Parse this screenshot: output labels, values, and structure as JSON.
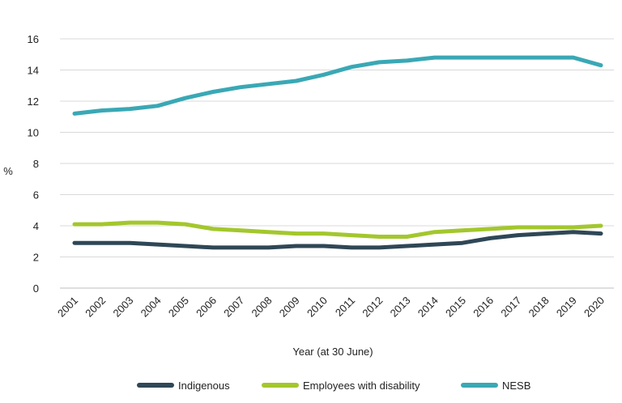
{
  "chart_data": {
    "type": "line",
    "title": "",
    "xlabel": "Year (at 30 June)",
    "ylabel": "%",
    "ylim": [
      0,
      16
    ],
    "yticks": [
      0,
      2,
      4,
      6,
      8,
      10,
      12,
      14,
      16
    ],
    "grid": true,
    "legend_position": "bottom",
    "x": [
      "2001",
      "2002",
      "2003",
      "2004",
      "2005",
      "2006",
      "2007",
      "2008",
      "2009",
      "2010",
      "2011",
      "2012",
      "2013",
      "2014",
      "2015",
      "2016",
      "2017",
      "2018",
      "2019",
      "2020"
    ],
    "series": [
      {
        "name": "Indigenous",
        "color": "#2f4756",
        "values": [
          2.9,
          2.9,
          2.9,
          2.8,
          2.7,
          2.6,
          2.6,
          2.6,
          2.7,
          2.7,
          2.6,
          2.6,
          2.7,
          2.8,
          2.9,
          3.2,
          3.4,
          3.5,
          3.6,
          3.5
        ]
      },
      {
        "name": "Employees with disability",
        "color": "#a3c72d",
        "values": [
          4.1,
          4.1,
          4.2,
          4.2,
          4.1,
          3.8,
          3.7,
          3.6,
          3.5,
          3.5,
          3.4,
          3.3,
          3.3,
          3.6,
          3.7,
          3.8,
          3.9,
          3.9,
          3.9,
          4.0
        ]
      },
      {
        "name": "NESB",
        "color": "#3aa8b5",
        "values": [
          11.2,
          11.4,
          11.5,
          11.7,
          12.2,
          12.6,
          12.9,
          13.1,
          13.3,
          13.7,
          14.2,
          14.5,
          14.6,
          14.8,
          14.8,
          14.8,
          14.8,
          14.8,
          14.8,
          14.3
        ]
      }
    ]
  }
}
